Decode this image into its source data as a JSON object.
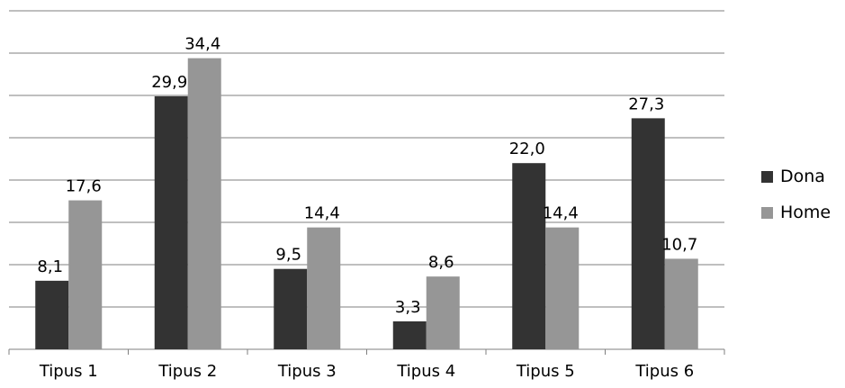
{
  "chart_data": {
    "type": "bar",
    "categories": [
      "Tipus 1",
      "Tipus 2",
      "Tipus 3",
      "Tipus 4",
      "Tipus 5",
      "Tipus 6"
    ],
    "series": [
      {
        "name": "Dona",
        "values": [
          8.1,
          29.9,
          9.5,
          3.3,
          22.0,
          27.3
        ],
        "labels": [
          "8,1",
          "29,9",
          "9,5",
          "3,3",
          "22,0",
          "27,3"
        ],
        "color": "#333333"
      },
      {
        "name": "Home",
        "values": [
          17.6,
          34.4,
          14.4,
          8.6,
          14.4,
          10.7
        ],
        "labels": [
          "17,6",
          "34,4",
          "14,4",
          "8,6",
          "14,4",
          "10,7"
        ],
        "color": "#969696"
      }
    ],
    "ylim": [
      0,
      40
    ],
    "grid": true,
    "legend_position": "right"
  }
}
